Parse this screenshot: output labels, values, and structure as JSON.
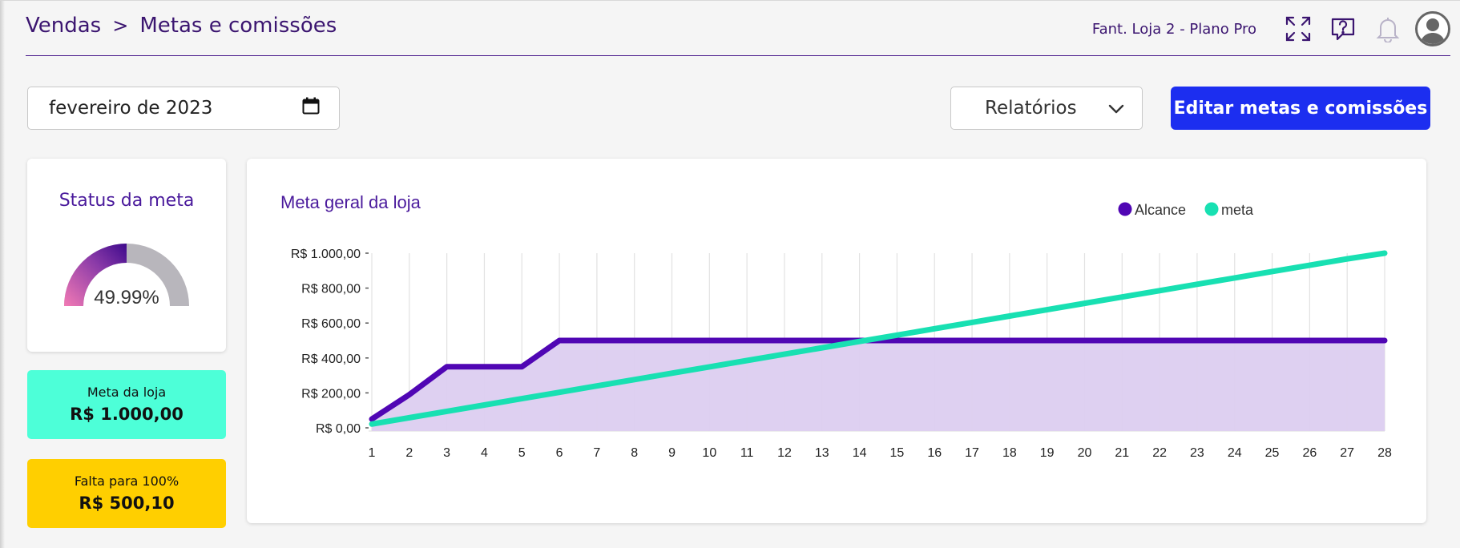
{
  "header": {
    "breadcrumb": [
      "Vendas",
      "Metas e comissões"
    ],
    "separator": ">",
    "store_name": "Fant. Loja 2 - Plano Pro",
    "icons": [
      "expand-icon",
      "help-chat-icon",
      "bell-icon",
      "user-avatar-icon"
    ]
  },
  "toolbar": {
    "date_value": "fevereiro de 2023",
    "reports_label": "Relatórios",
    "edit_button_label": "Editar metas e comissões"
  },
  "status": {
    "title": "Status da meta",
    "percent_label": "49.99%",
    "percent_value": 0.4999
  },
  "meta_loja": {
    "label": "Meta da loja",
    "value": "R$ 1.000,00"
  },
  "falta": {
    "label": "Falta para 100%",
    "value": "R$ 500,10"
  },
  "colors": {
    "accent_blue": "#1c2ef0",
    "alcance": "#5006b4",
    "alcance_fill": "#dccdf0",
    "meta": "#18e0b2",
    "meta_box": "#4dffd8",
    "falta_box": "#ffcf00",
    "title_purple": "#4a1a9c"
  },
  "chart_data": {
    "type": "line",
    "title": "Meta geral da loja",
    "legend_position": "top-right",
    "x": [
      1,
      2,
      3,
      4,
      5,
      6,
      7,
      8,
      9,
      10,
      11,
      12,
      13,
      14,
      15,
      16,
      17,
      18,
      19,
      20,
      21,
      22,
      23,
      24,
      25,
      26,
      27,
      28
    ],
    "ylim": [
      0,
      1000
    ],
    "yticks": [
      "R$ 0,00",
      "R$ 200,00",
      "R$ 400,00",
      "R$ 600,00",
      "R$ 800,00",
      "R$ 1.000,00"
    ],
    "ytick_values": [
      0,
      200,
      400,
      600,
      800,
      1000
    ],
    "grid": true,
    "series": [
      {
        "name": "Alcance",
        "fill": true,
        "values": [
          50,
          190,
          350,
          350,
          350,
          500,
          500,
          500,
          500,
          500,
          500,
          500,
          500,
          500,
          500,
          500,
          500,
          500,
          500,
          500,
          500,
          500,
          500,
          500,
          500,
          500,
          500,
          500
        ]
      },
      {
        "name": "meta",
        "fill": false,
        "values": [
          21.6,
          57.9,
          94.3,
          130.7,
          167.1,
          203.4,
          239.8,
          276.2,
          312.6,
          348.9,
          385.3,
          421.7,
          458.1,
          494.4,
          530.8,
          567.2,
          603.6,
          639.9,
          676.3,
          712.7,
          749.1,
          785.4,
          821.8,
          858.2,
          894.6,
          930.9,
          967.3,
          1000
        ]
      }
    ]
  }
}
